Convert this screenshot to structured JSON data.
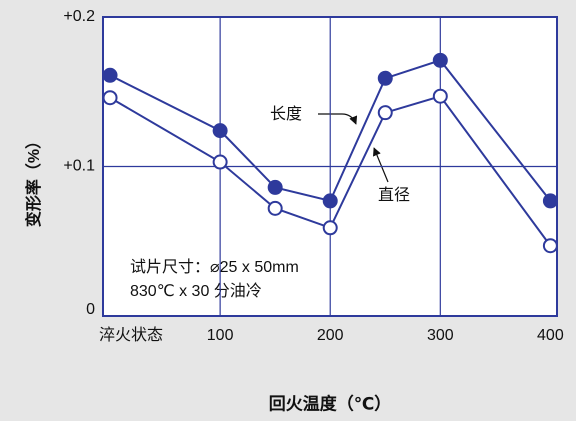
{
  "chart_data": {
    "type": "line",
    "y_label": "变形率（%）",
    "x_label": "回火温度（℃）",
    "x": [
      0,
      100,
      150,
      200,
      250,
      300,
      400
    ],
    "series": [
      {
        "name": "长度",
        "color": "#2e3a9c",
        "marker": "filled",
        "values": [
          0.161,
          0.124,
          0.086,
          0.077,
          0.159,
          0.171,
          0.077
        ]
      },
      {
        "name": "直径",
        "color": "#2e3a9c",
        "marker": "open",
        "values": [
          0.146,
          0.103,
          0.072,
          0.059,
          0.136,
          0.147,
          0.047
        ]
      }
    ],
    "annotations": [
      "试片尺寸：⌀25 x 50mm",
      "830℃ x 30 分油冷"
    ],
    "xlim": [
      -6.4,
      406
    ],
    "xticks": [
      {
        "value": 0,
        "label": "淬火状态"
      },
      100,
      200,
      300,
      400
    ],
    "ylim": [
      0,
      0.2
    ],
    "yticks": [
      {
        "value": 0,
        "label": "0"
      },
      {
        "value": 0.1,
        "label": "+0.1"
      },
      {
        "value": 0.2,
        "label": "+0.2"
      }
    ],
    "grid": true
  }
}
